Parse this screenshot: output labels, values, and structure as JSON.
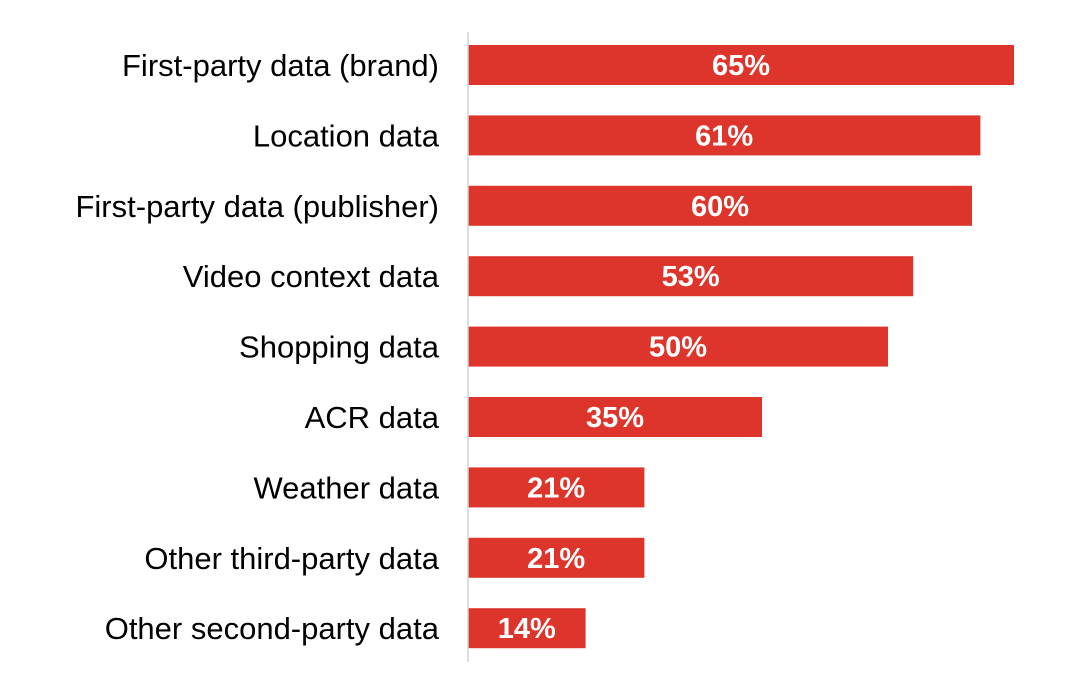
{
  "chart_data": {
    "type": "bar",
    "orientation": "horizontal",
    "categories": [
      "First-party data (brand)",
      "Location data",
      "First-party data (publisher)",
      "Video context data",
      "Shopping data",
      "ACR data",
      "Weather data",
      "Other third-party data",
      "Other second-party data"
    ],
    "values": [
      65,
      61,
      60,
      53,
      50,
      35,
      21,
      21,
      14
    ],
    "data_labels": [
      "65%",
      "61%",
      "60%",
      "53%",
      "50%",
      "35%",
      "21%",
      "21%",
      "14%"
    ],
    "title": "",
    "xlabel": "",
    "ylabel": "",
    "xlim": [
      0,
      65
    ],
    "grid": false,
    "legend": "none",
    "colors": {
      "bar": "#dd352b",
      "axis": "#d4d4d4",
      "label": "#000000",
      "value_label": "#ffffff"
    }
  }
}
